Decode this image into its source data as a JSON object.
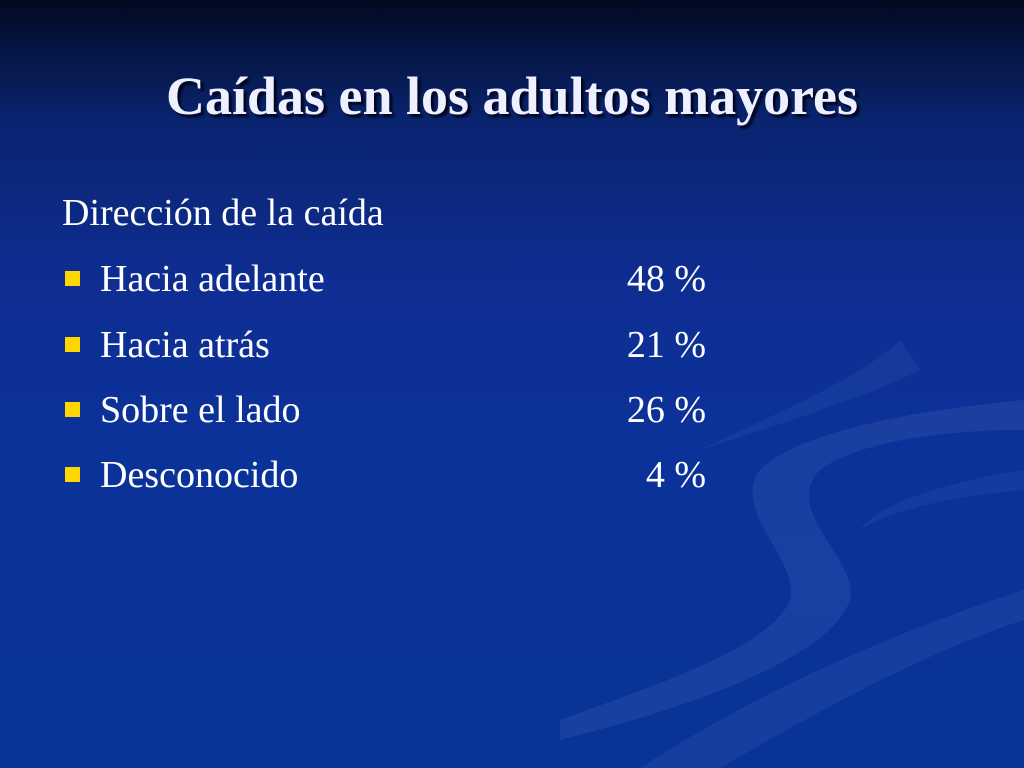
{
  "slide": {
    "title": "Caídas en los adultos mayores",
    "subtitle": "Dirección de la caída",
    "items": [
      {
        "label": "Hacia adelante",
        "value": "48 %"
      },
      {
        "label": "Hacia atrás",
        "value": "21 %"
      },
      {
        "label": "Sobre el lado",
        "value": "26 %"
      },
      {
        "label": "Desconocido",
        "value": "4 %"
      }
    ]
  },
  "colors": {
    "background_top": "#020a22",
    "background_main": "#0b3299",
    "bullet": "#ffd700",
    "text": "#ffffff"
  },
  "icons": {
    "bullet": "yellow-square",
    "decoration": "wave-swooshes"
  }
}
